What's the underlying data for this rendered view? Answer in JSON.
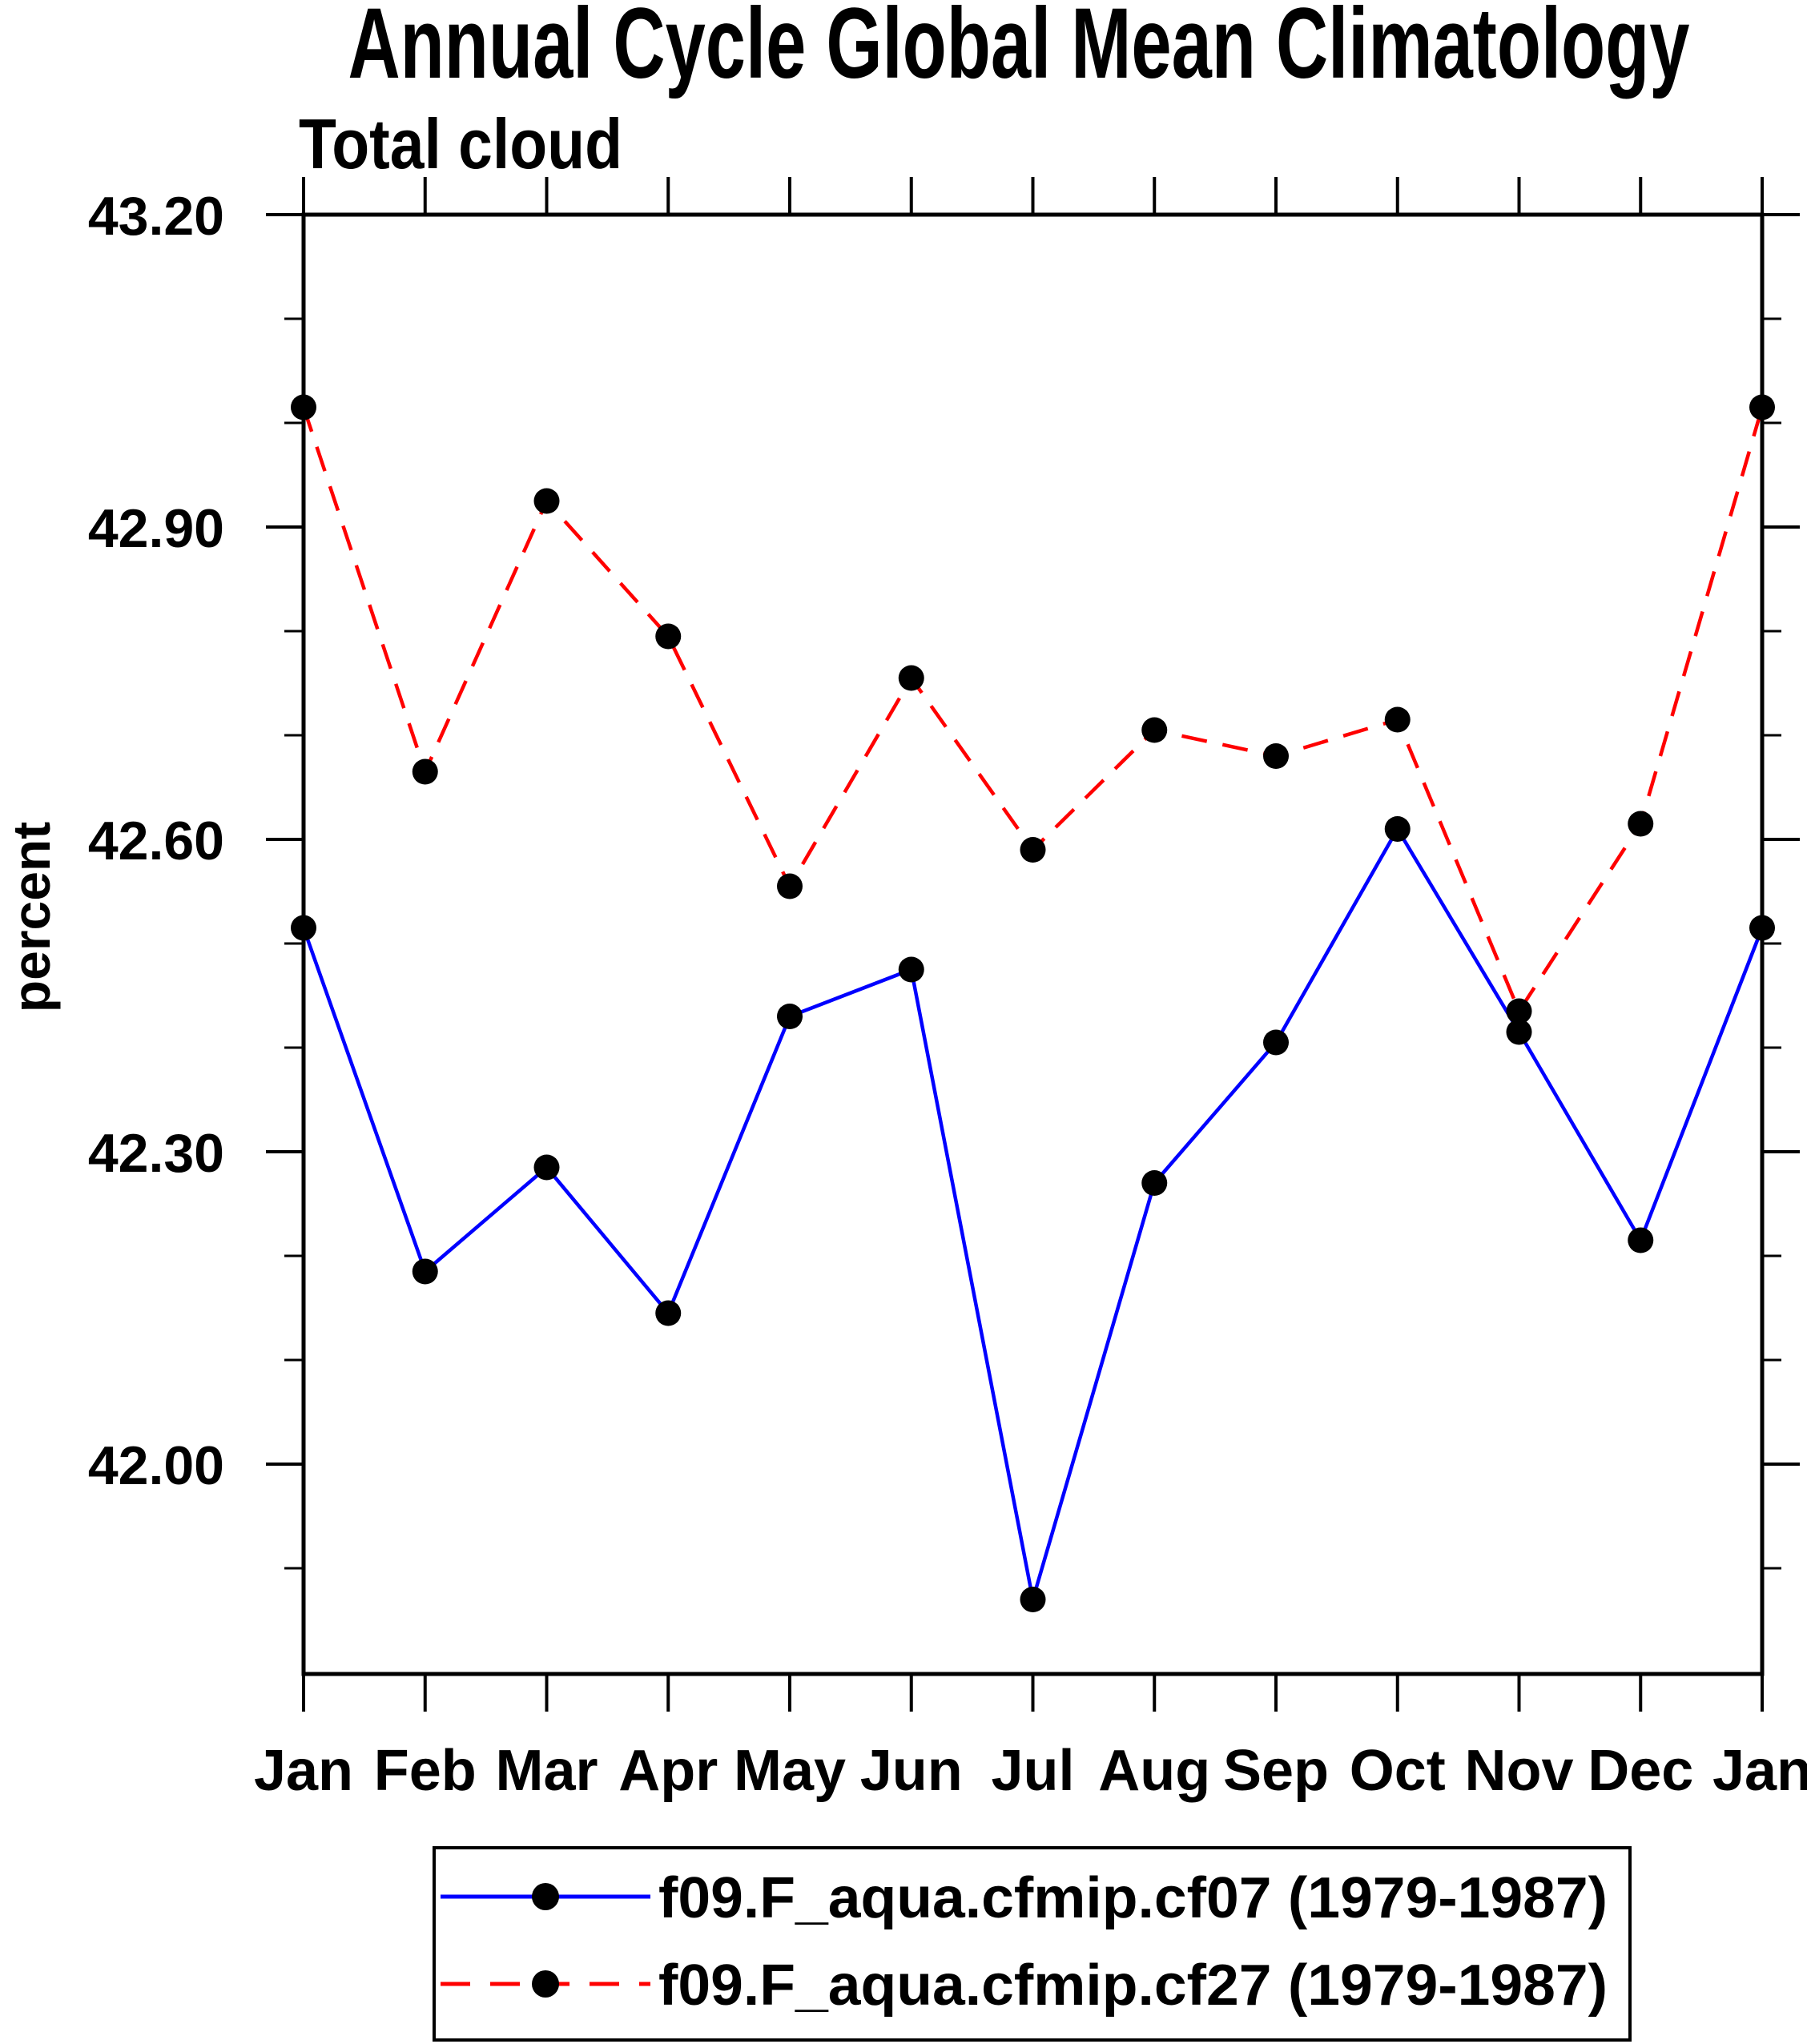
{
  "title": "Annual Cycle Global Mean Climatology",
  "subtitle": "Total cloud",
  "chart_data": {
    "type": "line",
    "title": "Annual Cycle Global Mean Climatology",
    "subtitle": "Total cloud",
    "ylabel": "percent",
    "xlabel": "",
    "categories": [
      "Jan",
      "Feb",
      "Mar",
      "Apr",
      "May",
      "Jun",
      "Jul",
      "Aug",
      "Sep",
      "Oct",
      "Nov",
      "Dec",
      "Jan"
    ],
    "series": [
      {
        "name": "f09.F_aqua.cfmip.cf07 (1979-1987)",
        "color": "#0000ff",
        "line_style": "solid",
        "marker": "filled-circle",
        "marker_color": "#000000",
        "values": [
          42.515,
          42.185,
          42.285,
          42.145,
          42.43,
          42.475,
          41.87,
          42.27,
          42.405,
          42.61,
          42.415,
          42.215,
          42.515
        ]
      },
      {
        "name": "f09.F_aqua.cfmip.cf27 (1979-1987)",
        "color": "#ff0000",
        "line_style": "dashed",
        "marker": "filled-circle",
        "marker_color": "#000000",
        "values": [
          43.015,
          42.665,
          42.925,
          42.795,
          42.555,
          42.755,
          42.59,
          42.705,
          42.68,
          42.715,
          42.435,
          42.615,
          43.015
        ]
      }
    ],
    "ylim": [
      41.79,
      43.2
    ],
    "yticks_major": [
      43.2,
      42.9,
      42.6,
      42.3,
      42.0
    ],
    "ytick_labels": [
      "43.20",
      "42.90",
      "42.60",
      "42.30",
      "42.00"
    ],
    "minor_tick_step": 0.1,
    "grid": false,
    "legend_position": "bottom"
  },
  "colors": {
    "series1": "#0000ff",
    "series2": "#ff0000",
    "marker": "#000000",
    "axis": "#000000",
    "background": "#ffffff"
  }
}
